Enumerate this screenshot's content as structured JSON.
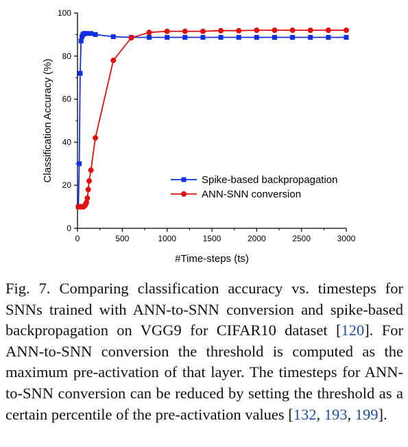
{
  "chart_data": {
    "type": "line",
    "xlabel": "#Time-steps (ts)",
    "ylabel": "Classification Accuracy (%)",
    "xlim": [
      0,
      3000
    ],
    "ylim": [
      0,
      100
    ],
    "xticks": [
      0,
      500,
      1000,
      1500,
      2000,
      2500,
      3000
    ],
    "yticks": [
      0,
      20,
      40,
      60,
      80,
      100
    ],
    "grid": false,
    "legend": "center-right",
    "series": [
      {
        "name": "Spike-based backpropagation",
        "color": "#1030e0",
        "marker": "square",
        "x": [
          10,
          20,
          30,
          40,
          50,
          60,
          70,
          80,
          90,
          100,
          150,
          200,
          400,
          600,
          800,
          1000,
          1200,
          1400,
          1600,
          1800,
          2000,
          2200,
          2400,
          2600,
          2800,
          3000
        ],
        "y": [
          10,
          30,
          72,
          87,
          89,
          90,
          90.3,
          90.5,
          90.5,
          90.5,
          90.5,
          90,
          89,
          88.7,
          88.7,
          88.7,
          88.7,
          88.7,
          88.7,
          88.7,
          88.7,
          88.7,
          88.7,
          88.7,
          88.7,
          88.7
        ]
      },
      {
        "name": "ANN-SNN conversion",
        "color": "#e01010",
        "marker": "circle",
        "x": [
          10,
          20,
          30,
          40,
          50,
          60,
          70,
          80,
          90,
          100,
          110,
          120,
          130,
          150,
          200,
          400,
          600,
          800,
          1000,
          1200,
          1400,
          1600,
          1800,
          2000,
          2200,
          2400,
          2600,
          2800,
          3000
        ],
        "y": [
          10,
          10,
          10,
          10,
          10,
          10,
          10,
          10.5,
          11,
          12,
          14,
          18,
          22,
          27,
          42,
          78,
          88.5,
          91,
          91.5,
          91.5,
          91.5,
          91.8,
          91.8,
          92,
          92,
          92,
          92,
          92,
          92
        ]
      }
    ]
  },
  "caption": {
    "prefix": "Fig. 7. Comparing classification accuracy vs. timesteps for SNNs trained with ANN-to-SNN conversion and spike-based backpropagation on VGG9 for CIFAR10 dataset [",
    "cite1": "120",
    "mid": "]. For ANN-to-SNN conversion the threshold is computed as the maximum pre-activation of that layer. The timesteps for ANN-to-SNN conversion can be reduced by setting the threshold as a certain percentile of the pre-activation values [",
    "cite2": "132",
    "sep1": ", ",
    "cite3": "193",
    "sep2": ", ",
    "cite4": "199",
    "suffix": "]."
  }
}
